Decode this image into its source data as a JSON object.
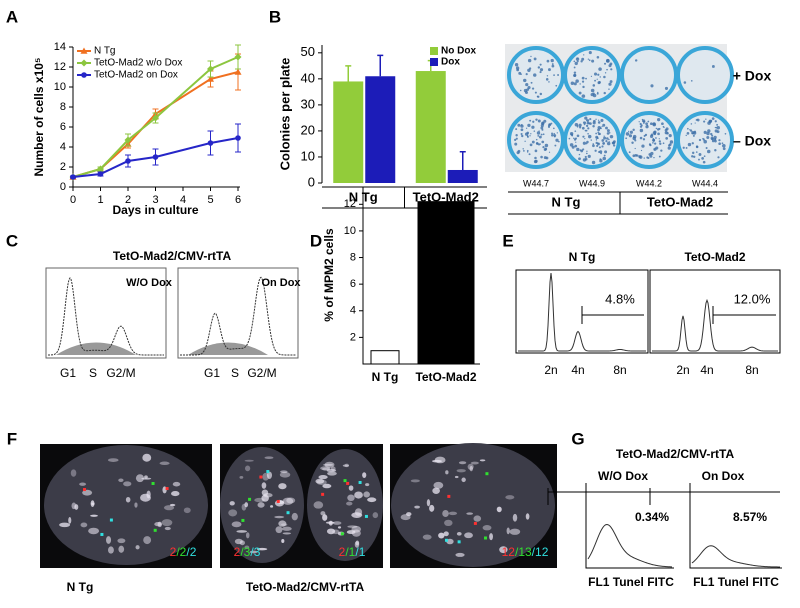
{
  "panel_letters": [
    "A",
    "B",
    "C",
    "D",
    "E",
    "F",
    "G"
  ],
  "chart_data": [
    {
      "type": "line",
      "ylabel": "Number of cells x10⁵",
      "xlabel": "Days in culture",
      "x": [
        0,
        1,
        2,
        3,
        5,
        6
      ],
      "xlim": [
        0,
        6
      ],
      "xticks": [
        0,
        1,
        2,
        3,
        4,
        5,
        6
      ],
      "ylim": [
        0,
        14
      ],
      "yticks": [
        0,
        2,
        4,
        6,
        8,
        10,
        12,
        14
      ],
      "series": [
        {
          "name": "N Tg",
          "color": "#f07020",
          "marker": "triangle",
          "values": [
            1.0,
            1.8,
            4.3,
            7.3,
            10.8,
            11.5
          ],
          "errors": [
            0.1,
            0.2,
            0.4,
            0.5,
            0.8,
            1.8
          ]
        },
        {
          "name": "TetO-Mad2 w/o Dox",
          "color": "#8cc63f",
          "marker": "diamond",
          "values": [
            1.0,
            1.8,
            4.7,
            6.9,
            11.8,
            13.0
          ],
          "errors": [
            0.1,
            0.2,
            0.6,
            0.5,
            0.8,
            1.2
          ]
        },
        {
          "name": "TetO-Mad2 on Dox",
          "color": "#2626c8",
          "marker": "circle",
          "values": [
            1.0,
            1.3,
            2.6,
            3.0,
            4.4,
            4.9
          ],
          "errors": [
            0.1,
            0.2,
            0.6,
            0.8,
            1.2,
            1.4
          ]
        }
      ]
    },
    {
      "type": "bar",
      "ylabel": "Colonies per plate",
      "categories": [
        "N Tg",
        "TetO-Mad2"
      ],
      "ylim": [
        0,
        53
      ],
      "yticks": [
        0,
        10,
        20,
        30,
        40,
        50
      ],
      "series": [
        {
          "name": "No Dox",
          "color": "#92cc3a",
          "values": [
            39,
            43
          ],
          "errors": [
            6,
            4
          ]
        },
        {
          "name": "Dox",
          "color": "#1c1cb8",
          "values": [
            41,
            5
          ],
          "errors": [
            8,
            7
          ]
        }
      ]
    },
    {
      "type": "bar",
      "ylabel": "% of MPM2 cells",
      "categories": [
        "N Tg",
        "TetO-Mad2"
      ],
      "values": [
        1,
        12.2
      ],
      "colors": [
        "#ffffff",
        "#000000"
      ],
      "ylim": [
        0,
        13.3
      ],
      "yticks": [
        2,
        4,
        6,
        8,
        10,
        12
      ]
    }
  ],
  "colony_plates": {
    "row_labels": [
      "+ Dox",
      "– Dox"
    ],
    "plate_labels": [
      "W44.7",
      "W44.9",
      "W44.2",
      "W44.4"
    ],
    "group_labels": [
      "N Tg",
      "TetO-Mad2"
    ]
  },
  "cell_cycle": {
    "title": "TetO-Mad2/CMV-rtTA",
    "panels": [
      {
        "title": "W/O Dox",
        "phases": [
          "G1",
          "S",
          "G2/M"
        ]
      },
      {
        "title": "On Dox",
        "phases": [
          "G1",
          "S",
          "G2/M"
        ]
      }
    ]
  },
  "ploidy": {
    "panels": [
      {
        "title": "N Tg",
        "gate": "4.8%",
        "peaks": [
          "2n",
          "4n",
          "8n"
        ]
      },
      {
        "title": "TetO-Mad2",
        "gate": "12.0%",
        "peaks": [
          "2n",
          "4n",
          "8n"
        ]
      }
    ]
  },
  "fish": {
    "separator": "/",
    "count_colors": [
      "#ff3030",
      "#30e030",
      "#30e0e0"
    ],
    "images": [
      {
        "counts": [
          [
            "2",
            "2",
            "2"
          ]
        ]
      },
      {
        "counts": [
          [
            "2",
            "3",
            "3"
          ],
          [
            "2",
            "1",
            "1"
          ]
        ]
      },
      {
        "counts": [
          [
            "12",
            "13",
            "12"
          ]
        ]
      }
    ],
    "captions": [
      "N Tg",
      "TetO-Mad2/CMV-rtTA"
    ]
  },
  "tunel": {
    "title": "TetO-Mad2/CMV-rtTA",
    "panels": [
      {
        "title": "W/O Dox",
        "gate": "0.34%",
        "axis_label": "FL1 Tunel FITC"
      },
      {
        "title": "On Dox",
        "gate": "8.57%",
        "axis_label": "FL1 Tunel FITC"
      }
    ]
  }
}
